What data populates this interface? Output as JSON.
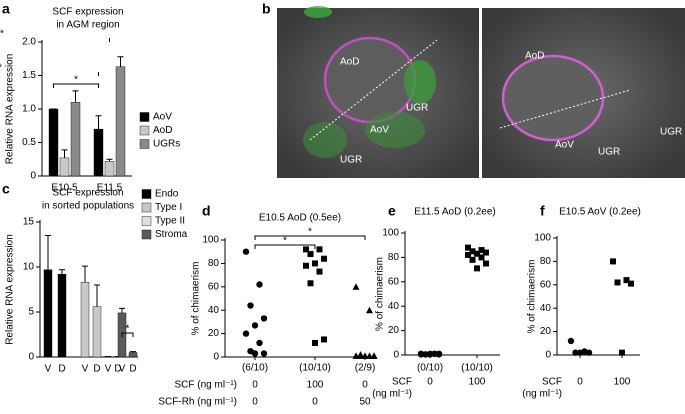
{
  "chart_data": [
    {
      "type": "bar",
      "panel": "a",
      "title": [
        "SCF expression",
        "in AGM region"
      ],
      "ylabel": "Relative RNA expression",
      "categories": [
        "E10.5",
        "E11.5"
      ],
      "series": [
        {
          "name": "AoV",
          "color": "#000000",
          "values": [
            1.0,
            0.7
          ],
          "errors": [
            0,
            0.2
          ]
        },
        {
          "name": "AoD",
          "color": "#c8c8c8",
          "values": [
            0.27,
            0.22
          ],
          "errors": [
            0.12,
            0.03
          ]
        },
        {
          "name": "UGRs",
          "color": "#8a8a8a",
          "values": [
            1.1,
            1.63
          ],
          "errors": [
            0.17,
            0.15
          ]
        }
      ],
      "ylim": [
        0,
        2
      ],
      "yticks": [
        0,
        0.5,
        {
          "value": 1,
          "label": "1.0"
        },
        1.5,
        {
          "value": 2,
          "label": "2.0"
        }
      ],
      "annotations": [
        "*",
        "*",
        "**"
      ]
    },
    {
      "type": "image",
      "panel": "b",
      "labels": [
        "AoD",
        "UGR",
        "AoV",
        "UGR",
        "AoD",
        "AoV",
        "UGR",
        "UGR"
      ]
    },
    {
      "type": "bar",
      "panel": "c",
      "title": [
        "SCF expression",
        "in sorted populations"
      ],
      "ylabel": "Relative RNA expression",
      "categories": [
        "V",
        "D"
      ],
      "series": [
        {
          "name": "Endo",
          "color": "#000000",
          "values": [
            9.7,
            9.2
          ],
          "errors": [
            3.8,
            0.5
          ]
        },
        {
          "name": "Type I",
          "color": "#c8c8c8",
          "values": [
            8.3,
            5.6
          ],
          "errors": [
            1.8,
            2.4
          ]
        },
        {
          "name": "Type II",
          "color": "#e0e0e0",
          "values": [
            0.05,
            0.05
          ],
          "errors": [
            0,
            0
          ]
        },
        {
          "name": "Stroma",
          "color": "#5a5a5a",
          "values": [
            4.9,
            0.5
          ],
          "errors": [
            0.5,
            0.1
          ]
        }
      ],
      "ylim": [
        0,
        15
      ],
      "yticks": [
        0,
        5,
        10,
        15
      ],
      "annotations": [
        "*"
      ]
    },
    {
      "type": "dot",
      "panel": "d",
      "title": "E10.5 AoD (0.5ee)",
      "ylabel": "% of chimaerism",
      "ylim": [
        0,
        100
      ],
      "yticks": [
        0,
        20,
        40,
        60,
        80,
        100
      ],
      "groups": [
        {
          "label": "(6/10)",
          "marker": "circle",
          "values": [
            90,
            62,
            44,
            33,
            27,
            20,
            12,
            5,
            3,
            3
          ]
        },
        {
          "label": "(10/10)",
          "marker": "square",
          "values": [
            92,
            92,
            88,
            84,
            80,
            78,
            73,
            63,
            15,
            12
          ]
        },
        {
          "label": "(2/9)",
          "marker": "triangle",
          "values": [
            60,
            40,
            2,
            1,
            1,
            1,
            1,
            1,
            1
          ]
        }
      ],
      "rows": [
        {
          "name": "SCF (ng ml⁻¹)",
          "values": [
            0,
            100,
            0
          ]
        },
        {
          "name": "SCF-Rh (ng ml⁻¹)",
          "values": [
            0,
            0,
            50
          ]
        }
      ],
      "annotations": [
        "*",
        "*"
      ]
    },
    {
      "type": "dot",
      "panel": "e",
      "title": "E11.5 AoD (0.2ee)",
      "ylabel": "% of chimaerism",
      "ylim": [
        0,
        100
      ],
      "yticks": [
        0,
        20,
        40,
        60,
        80,
        100
      ],
      "groups": [
        {
          "label": "(0/10)",
          "marker": "circle",
          "values": [
            1,
            1,
            0.5,
            0.5,
            1,
            0.5,
            1,
            0.5,
            1,
            0.5
          ]
        },
        {
          "label": "(10/10)",
          "marker": "square",
          "values": [
            88,
            86,
            85,
            84,
            83,
            82,
            80,
            78,
            75,
            71
          ]
        }
      ],
      "rows": [
        {
          "name": [
            "SCF",
            "(ng ml⁻¹)"
          ],
          "values": [
            0,
            100
          ]
        }
      ]
    },
    {
      "type": "dot",
      "panel": "f",
      "title": "E10.5 AoV (0.2ee)",
      "ylabel": "% of chimaerism",
      "ylim": [
        0,
        100
      ],
      "yticks": [
        0,
        20,
        40,
        60,
        80,
        100
      ],
      "groups": [
        {
          "marker": "circle",
          "values": [
            12,
            3,
            2,
            2,
            2
          ]
        },
        {
          "marker": "square",
          "values": [
            80,
            64,
            62,
            61,
            2
          ]
        }
      ],
      "rows": [
        {
          "name": [
            "SCF",
            "(ng ml⁻¹)"
          ],
          "values": [
            0,
            100
          ]
        }
      ]
    }
  ]
}
